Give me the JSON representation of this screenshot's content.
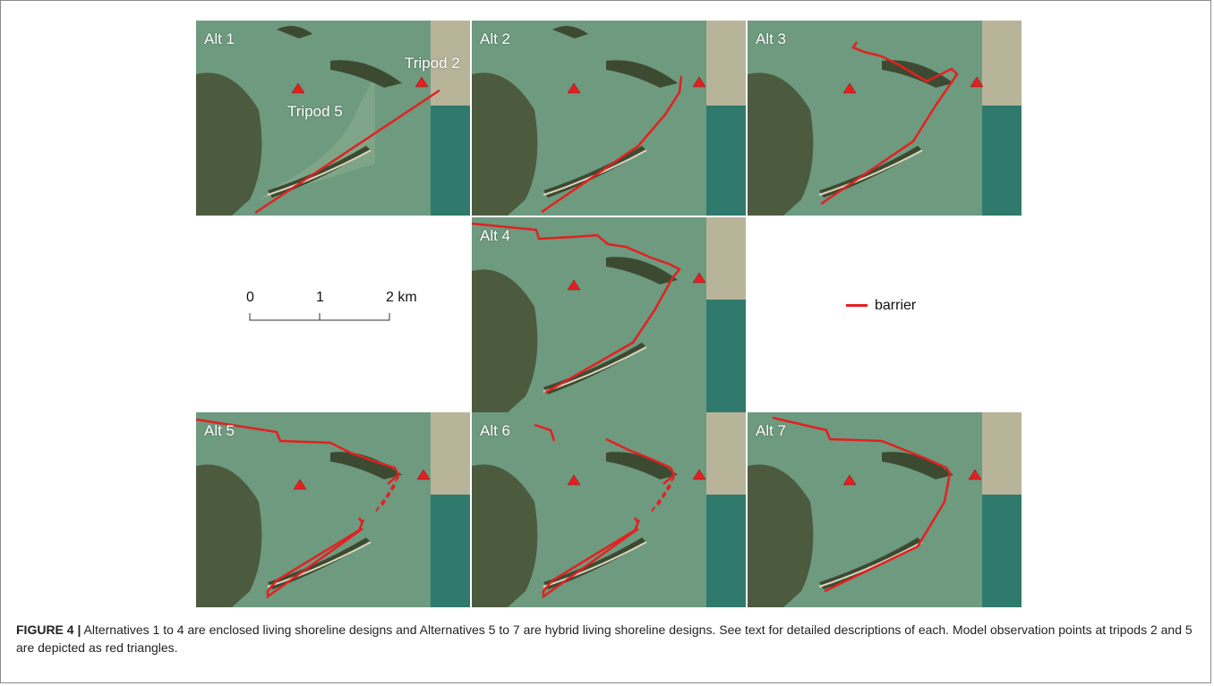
{
  "figure": {
    "panels": [
      {
        "label": "Alt 1"
      },
      {
        "label": "Alt 2"
      },
      {
        "label": "Alt 3"
      },
      {
        "label": "Alt 4"
      },
      {
        "label": "Alt 5"
      },
      {
        "label": "Alt 6"
      },
      {
        "label": "Alt 7"
      }
    ],
    "tripod_labels": {
      "tripod2": "Tripod 2",
      "tripod5": "Tripod 5"
    },
    "scalebar": {
      "ticks": [
        "0",
        "1",
        "2 km"
      ]
    },
    "legend": {
      "barrier_label": "barrier"
    },
    "colors": {
      "barrier": "#e32020",
      "water": "#6f9a7c",
      "land": "#4c5a3e",
      "ocean": "#2f7a6c",
      "sand": "#dcd6be"
    }
  },
  "caption": {
    "figure_number": "FIGURE 4 |",
    "text": "Alternatives 1 to 4 are enclosed living shoreline designs and Alternatives 5 to 7 are hybrid living shoreline designs. See text for detailed descriptions of each. Model observation points at tripods 2 and 5 are depicted as red triangles."
  }
}
